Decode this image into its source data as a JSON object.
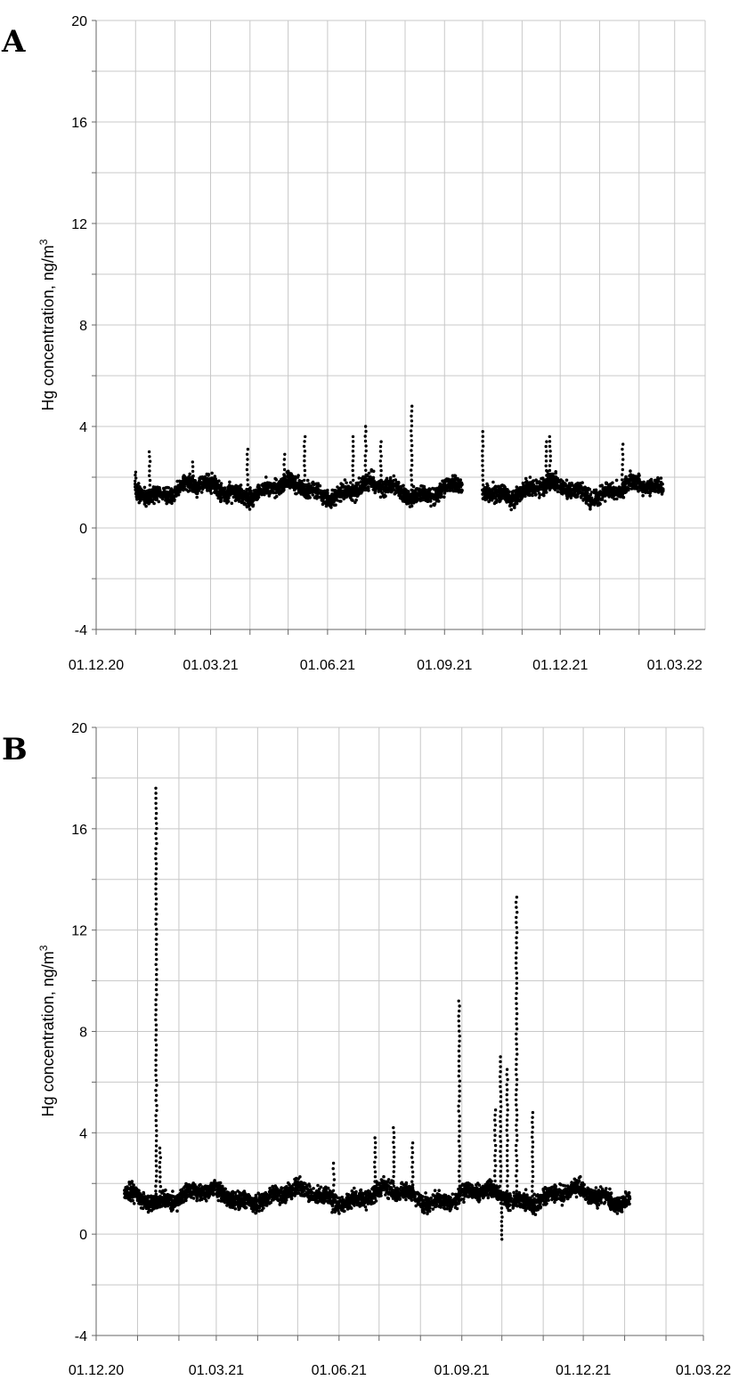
{
  "chart_data": [
    {
      "panel": "A",
      "type": "scatter",
      "title": "",
      "xlabel": "",
      "ylabel": "Hg concentration, ng/m",
      "ylabel_superscript": "3",
      "ylim": [
        -4,
        20
      ],
      "yticks": [
        -4,
        0,
        4,
        8,
        12,
        16,
        20
      ],
      "xlim": [
        "2020-12-01",
        "2022-03-25"
      ],
      "xtick_labels": [
        "01.12.20",
        "01.03.21",
        "01.06.21",
        "01.09.21",
        "01.12.21",
        "01.03.22"
      ],
      "grid": true,
      "marker_color": "#000000",
      "segments": [
        {
          "start": "2021-01-01",
          "end": "2021-09-15",
          "baseline": 1.5
        },
        {
          "start": "2021-10-01",
          "end": "2022-02-20",
          "baseline": 1.5
        }
      ],
      "spikes": [
        {
          "date": "2021-01-01",
          "peak": 2.2
        },
        {
          "date": "2021-01-12",
          "peak": 3.0
        },
        {
          "date": "2021-02-15",
          "peak": 2.6
        },
        {
          "date": "2021-03-30",
          "peak": 3.1
        },
        {
          "date": "2021-04-28",
          "peak": 2.9
        },
        {
          "date": "2021-05-14",
          "peak": 3.6
        },
        {
          "date": "2021-06-21",
          "peak": 3.6
        },
        {
          "date": "2021-07-01",
          "peak": 4.0
        },
        {
          "date": "2021-07-13",
          "peak": 3.4
        },
        {
          "date": "2021-08-06",
          "peak": 4.8
        },
        {
          "date": "2021-10-01",
          "peak": 3.8
        },
        {
          "date": "2021-11-20",
          "peak": 3.4
        },
        {
          "date": "2021-11-23",
          "peak": 3.6
        },
        {
          "date": "2022-01-19",
          "peak": 3.3
        }
      ]
    },
    {
      "panel": "B",
      "type": "scatter",
      "title": "",
      "xlabel": "",
      "ylabel": "Hg concentration, ng/m",
      "ylabel_superscript": "3",
      "ylim": [
        -4,
        20
      ],
      "yticks": [
        -4,
        0,
        4,
        8,
        12,
        16,
        20
      ],
      "xlim": [
        "2020-12-01",
        "2022-03-01"
      ],
      "xtick_labels": [
        "01.12.20",
        "01.03.21",
        "01.06.21",
        "01.09.21",
        "01.12.21",
        "01.03.22"
      ],
      "grid": true,
      "marker_color": "#000000",
      "segments": [
        {
          "start": "2020-12-22",
          "end": "2022-01-05",
          "baseline": 1.5
        }
      ],
      "spikes": [
        {
          "date": "2021-01-15",
          "peak": 17.6
        },
        {
          "date": "2021-01-18",
          "peak": 3.4
        },
        {
          "date": "2021-05-28",
          "peak": 2.8
        },
        {
          "date": "2021-06-28",
          "peak": 3.8
        },
        {
          "date": "2021-07-12",
          "peak": 4.2
        },
        {
          "date": "2021-07-26",
          "peak": 3.6
        },
        {
          "date": "2021-08-30",
          "peak": 9.2
        },
        {
          "date": "2021-09-26",
          "peak": 4.9
        },
        {
          "date": "2021-09-30",
          "peak": 7.0
        },
        {
          "date": "2021-10-05",
          "peak": 6.5
        },
        {
          "date": "2021-10-12",
          "peak": 13.3
        },
        {
          "date": "2021-10-24",
          "peak": 4.8
        }
      ],
      "dips": [
        {
          "date": "2021-10-01",
          "low": -0.2
        }
      ]
    }
  ],
  "panels": {
    "a": {
      "letter": "A"
    },
    "b": {
      "letter": "B"
    }
  }
}
